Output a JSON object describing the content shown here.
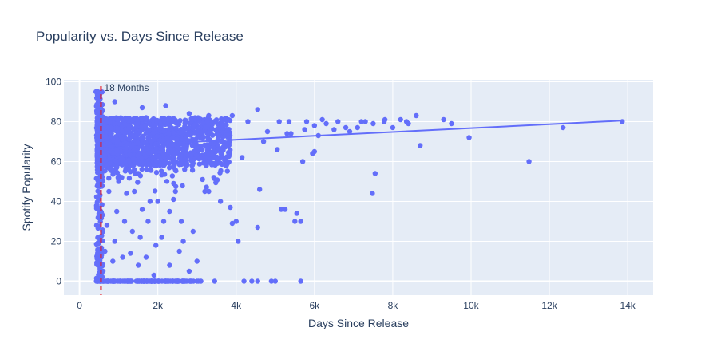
{
  "chart_data": {
    "type": "scatter",
    "title": "Popularity vs. Days Since Release",
    "xlabel": "Days Since Release",
    "ylabel": "Spotify Popularity",
    "xlim": [
      -400,
      14650
    ],
    "ylim": [
      -7,
      101
    ],
    "x_ticks": [
      0,
      2000,
      4000,
      6000,
      8000,
      10000,
      12000,
      14000
    ],
    "x_tick_labels": [
      "0",
      "2k",
      "4k",
      "6k",
      "8k",
      "10k",
      "12k",
      "14k"
    ],
    "y_ticks": [
      0,
      20,
      40,
      60,
      80,
      100
    ],
    "y_tick_labels": [
      "0",
      "20",
      "40",
      "60",
      "80",
      "100"
    ],
    "grid": true,
    "colors": {
      "marker": "#636efa",
      "trend": "#636efa",
      "vline": "#e8141d",
      "plot_bg": "#e5ecf6",
      "grid": "#ffffff",
      "text": "#2a3f5f"
    },
    "vertical_line": {
      "x": 547,
      "label": "18 Months",
      "color": "#e8141d",
      "style": "dashed"
    },
    "trendline": {
      "x": [
        450,
        13860
      ],
      "y": [
        67.5,
        80.5
      ]
    },
    "series": [
      {
        "values": [
          [
            13860,
            80
          ],
          [
            12350,
            77
          ],
          [
            11480,
            60
          ],
          [
            9950,
            72
          ],
          [
            9500,
            79
          ],
          [
            9300,
            81
          ],
          [
            8700,
            68
          ],
          [
            8600,
            83
          ],
          [
            8400,
            79
          ],
          [
            8350,
            80
          ],
          [
            8200,
            81
          ],
          [
            8000,
            77
          ],
          [
            7800,
            81
          ],
          [
            7780,
            80
          ],
          [
            7500,
            79
          ],
          [
            7550,
            54
          ],
          [
            7480,
            44
          ],
          [
            7300,
            80
          ],
          [
            7200,
            80
          ],
          [
            7100,
            77
          ],
          [
            6900,
            75
          ],
          [
            6800,
            77
          ],
          [
            6600,
            80
          ],
          [
            6500,
            76
          ],
          [
            6300,
            79
          ],
          [
            6200,
            81
          ],
          [
            6100,
            73
          ],
          [
            6000,
            78
          ],
          [
            6000,
            65
          ],
          [
            5950,
            64
          ],
          [
            5800,
            80
          ],
          [
            5750,
            76
          ],
          [
            5700,
            60
          ],
          [
            5650,
            30
          ],
          [
            5650,
            0
          ],
          [
            5550,
            34
          ],
          [
            5500,
            30
          ],
          [
            5400,
            74
          ],
          [
            5350,
            80
          ],
          [
            5300,
            74
          ],
          [
            5250,
            36
          ],
          [
            5150,
            36
          ],
          [
            5100,
            80
          ],
          [
            5050,
            66
          ],
          [
            5000,
            0
          ],
          [
            4900,
            0
          ],
          [
            4800,
            75
          ],
          [
            4700,
            70
          ],
          [
            4600,
            46
          ],
          [
            4550,
            27
          ],
          [
            4550,
            0
          ],
          [
            4400,
            0
          ],
          [
            4300,
            80
          ],
          [
            4200,
            0
          ],
          [
            4150,
            62
          ],
          [
            4050,
            20
          ],
          [
            4000,
            30
          ],
          [
            3900,
            29
          ],
          [
            3850,
            37
          ],
          [
            3750,
            58
          ],
          [
            3600,
            40
          ],
          [
            3450,
            0
          ],
          [
            3300,
            45
          ],
          [
            3200,
            45
          ],
          [
            3100,
            0
          ],
          [
            3000,
            10
          ],
          [
            2900,
            25
          ],
          [
            2800,
            5
          ],
          [
            2700,
            0
          ],
          [
            2650,
            20
          ],
          [
            2600,
            30
          ],
          [
            2550,
            15
          ],
          [
            2500,
            0
          ],
          [
            2450,
            45
          ],
          [
            2400,
            41
          ],
          [
            2300,
            35
          ],
          [
            2300,
            8
          ],
          [
            2200,
            0
          ],
          [
            2150,
            30
          ],
          [
            2100,
            22
          ],
          [
            2000,
            40
          ],
          [
            1950,
            18
          ],
          [
            1900,
            3
          ],
          [
            1850,
            0
          ],
          [
            1800,
            40
          ],
          [
            1750,
            30
          ],
          [
            1700,
            12
          ],
          [
            1650,
            0
          ],
          [
            1600,
            36
          ],
          [
            1550,
            22
          ],
          [
            1500,
            8
          ],
          [
            1450,
            0
          ],
          [
            1400,
            45
          ],
          [
            1350,
            25
          ],
          [
            1300,
            14
          ],
          [
            1250,
            0
          ],
          [
            1200,
            44
          ],
          [
            1150,
            30
          ],
          [
            1100,
            12
          ],
          [
            1050,
            0
          ],
          [
            1000,
            50
          ],
          [
            950,
            35
          ],
          [
            900,
            20
          ],
          [
            850,
            10
          ],
          [
            800,
            0
          ],
          [
            750,
            45
          ],
          [
            700,
            28
          ],
          [
            650,
            15
          ],
          [
            600,
            5
          ],
          [
            580,
            0
          ],
          [
            520,
            0
          ],
          [
            500,
            22
          ],
          [
            480,
            15
          ],
          [
            470,
            8
          ],
          [
            460,
            0
          ],
          [
            450,
            42
          ],
          [
            440,
            38
          ],
          [
            430,
            0
          ],
          [
            420,
            95
          ],
          [
            450,
            92
          ],
          [
            480,
            90
          ],
          [
            470,
            88
          ],
          [
            500,
            86
          ],
          [
            520,
            84
          ],
          [
            560,
            82
          ],
          [
            600,
            80
          ],
          [
            650,
            78
          ],
          [
            700,
            76
          ],
          [
            750,
            74
          ],
          [
            800,
            72
          ],
          [
            850,
            70
          ],
          [
            900,
            68
          ],
          [
            950,
            66
          ],
          [
            1000,
            64
          ],
          [
            1100,
            62
          ],
          [
            1200,
            60
          ],
          [
            1300,
            58
          ],
          [
            1400,
            56
          ],
          [
            1500,
            54
          ],
          [
            900,
            90
          ],
          [
            1600,
            87
          ],
          [
            2200,
            88
          ],
          [
            2800,
            84
          ],
          [
            3300,
            83
          ],
          [
            3900,
            83
          ],
          [
            4550,
            86
          ],
          [
            1700,
            82
          ],
          [
            2500,
            80
          ],
          [
            3000,
            78
          ],
          [
            3600,
            79
          ]
        ]
      }
    ]
  }
}
